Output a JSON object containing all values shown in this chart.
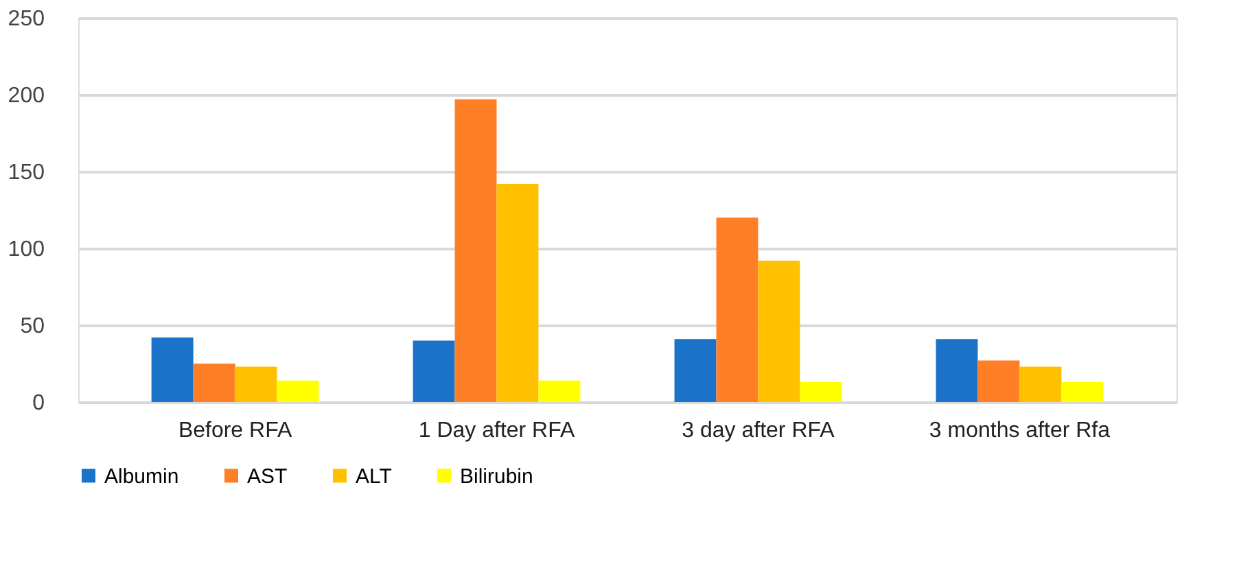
{
  "chart_data": {
    "type": "bar",
    "categories": [
      "Before RFA",
      "1 Day after RFA",
      "3 day after RFA",
      "3 months after Rfa"
    ],
    "series": [
      {
        "name": "Albumin",
        "color": "#1a73c8",
        "values": [
          42,
          40,
          41,
          41
        ]
      },
      {
        "name": "AST",
        "color": "#ff7f27",
        "values": [
          25,
          197,
          120,
          27
        ]
      },
      {
        "name": "ALT",
        "color": "#ffc000",
        "values": [
          23,
          142,
          92,
          23
        ]
      },
      {
        "name": "Bilirubin",
        "color": "#ffff00",
        "values": [
          14,
          14,
          13,
          13
        ]
      }
    ],
    "ylim": [
      0,
      250
    ],
    "yticks": [
      0,
      50,
      100,
      150,
      200,
      250
    ],
    "grid": "y",
    "legend": "bottom"
  }
}
